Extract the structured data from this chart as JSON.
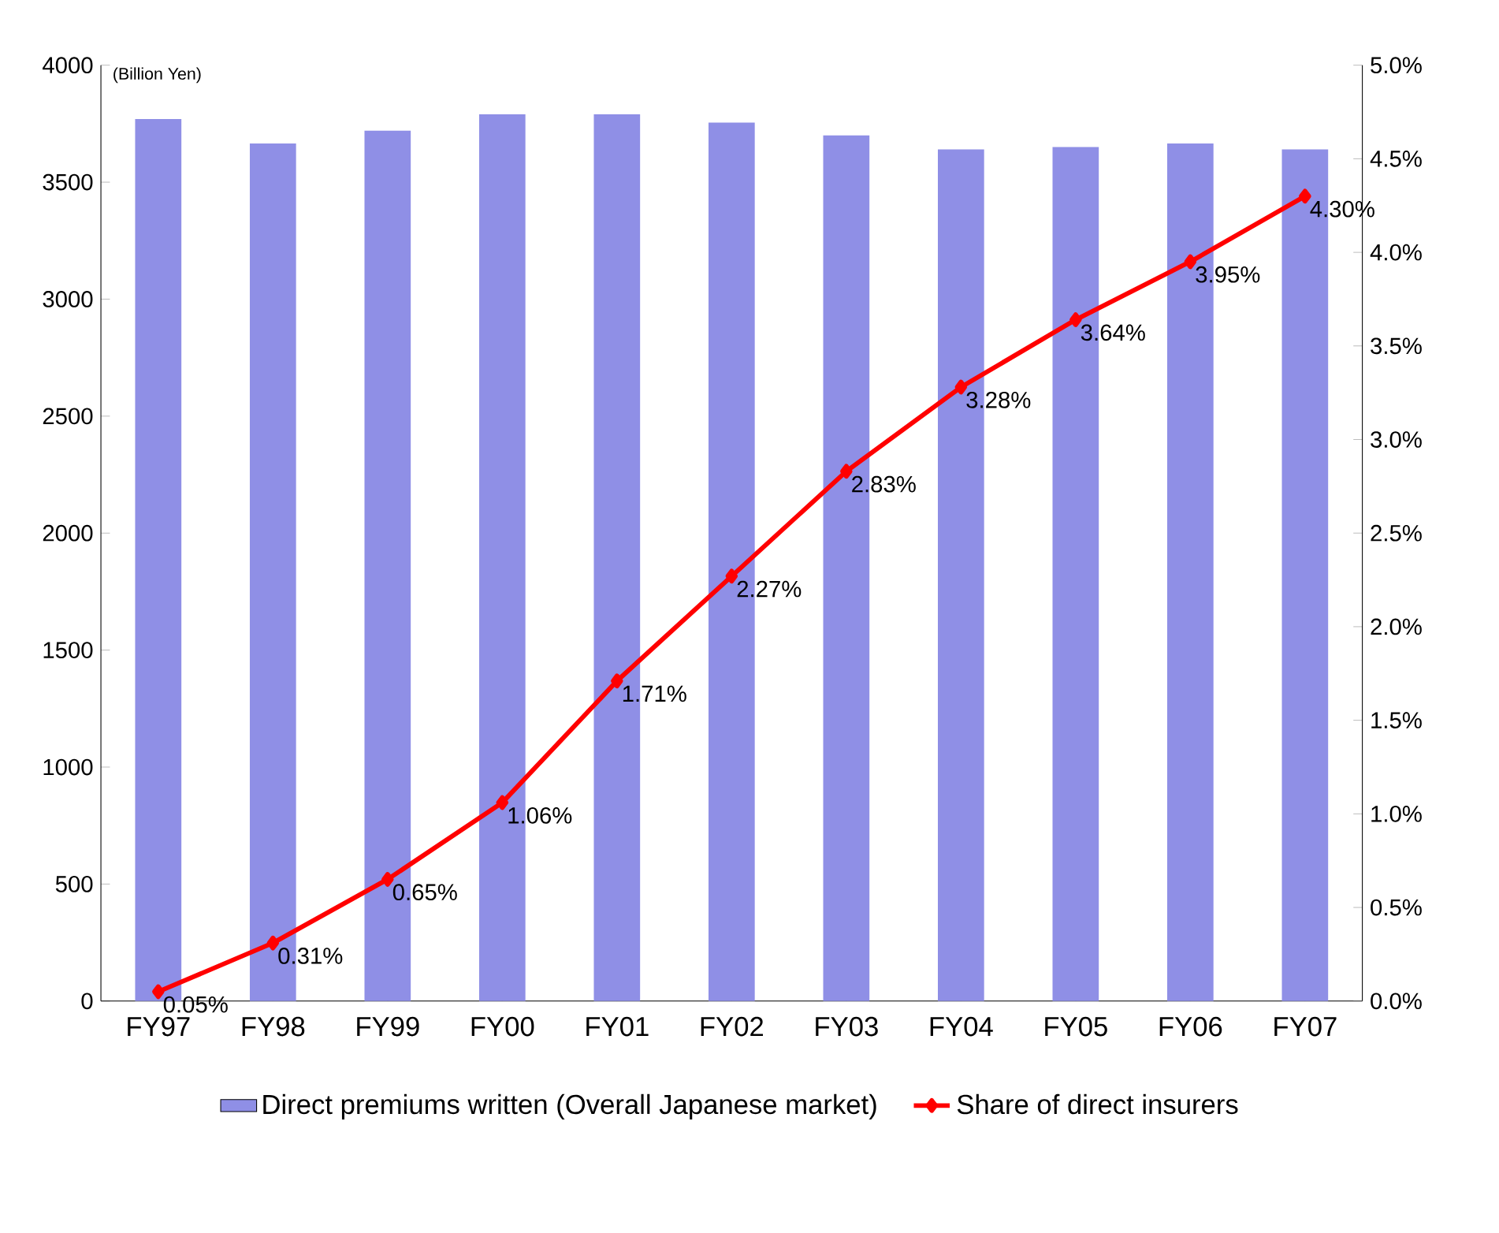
{
  "chart_data": {
    "type": "bar",
    "ylabel": "(Billion Yen)",
    "categories": [
      "FY97",
      "FY98",
      "FY99",
      "FY00",
      "FY01",
      "FY02",
      "FY03",
      "FY04",
      "FY05",
      "FY06",
      "FY07"
    ],
    "series": [
      {
        "name": "Direct premiums written (Overall Japanese market)",
        "color": "#8f8fe6",
        "values": [
          3770,
          3665,
          3720,
          3790,
          3790,
          3755,
          3700,
          3640,
          3650,
          3665,
          3640
        ]
      },
      {
        "name": "Share of direct insurers",
        "type": "line",
        "axis": "y2",
        "color": "#ff0000",
        "marker": "diamond",
        "values": [
          0.05,
          0.31,
          0.65,
          1.06,
          1.71,
          2.27,
          2.83,
          3.28,
          3.64,
          3.95,
          4.3
        ],
        "value_labels": [
          "0.05%",
          "0.31%",
          "0.65%",
          "1.06%",
          "1.71%",
          "2.27%",
          "2.83%",
          "3.28%",
          "3.64%",
          "3.95%",
          "4.30%"
        ]
      }
    ],
    "ylim": [
      0,
      4000
    ],
    "yticks": [
      0,
      500,
      1000,
      1500,
      2000,
      2500,
      3000,
      3500,
      4000
    ],
    "y2lim": [
      0,
      5
    ],
    "y2ticks": [
      {
        "value": 0,
        "label": "0.0%"
      },
      {
        "value": 0.5,
        "label": "0.5%"
      },
      {
        "value": 1,
        "label": "1.0%"
      },
      {
        "value": 1.5,
        "label": "1.5%"
      },
      {
        "value": 2,
        "label": "2.0%"
      },
      {
        "value": 2.5,
        "label": "2.5%"
      },
      {
        "value": 3,
        "label": "3.0%"
      },
      {
        "value": 3.5,
        "label": "3.5%"
      },
      {
        "value": 4,
        "label": "4.0%"
      },
      {
        "value": 4.5,
        "label": "4.5%"
      },
      {
        "value": 5,
        "label": "5.0%"
      }
    ],
    "legend": "bottom"
  }
}
